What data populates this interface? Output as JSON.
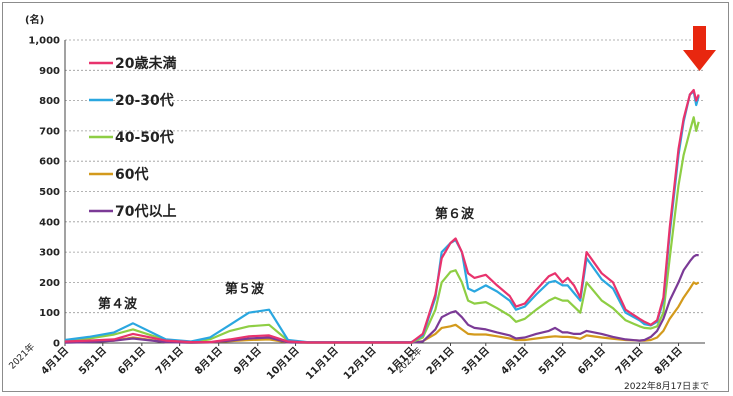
{
  "chart_data": {
    "type": "line",
    "unit_label": "(名)",
    "ylim": [
      0,
      1000
    ],
    "y_ticks": [
      "0",
      "100",
      "200",
      "300",
      "400",
      "500",
      "600",
      "700",
      "800",
      "900",
      "1,000"
    ],
    "x_ticks": [
      "4月1日",
      "5月1日",
      "6月1日",
      "7月1日",
      "8月1日",
      "9月1日",
      "10月1日",
      "11月1日",
      "12月1日",
      "1月1日",
      "2月1日",
      "3月1日",
      "4月1日",
      "5月1日",
      "6月1日",
      "7月1日",
      "8月1日"
    ],
    "x_year_labels": [
      "2021年",
      "2022年"
    ],
    "footnote": "2022年8月17日まで",
    "annotations": [
      "第４波",
      "第５波",
      "第６波"
    ],
    "grid": "horizontal dotted",
    "legend_position": "top-left",
    "x_dates": [
      "2021-04-01",
      "2021-04-20",
      "2021-05-10",
      "2021-05-25",
      "2021-06-20",
      "2021-07-10",
      "2021-07-25",
      "2021-08-10",
      "2021-08-25",
      "2021-09-10",
      "2021-09-25",
      "2021-10-10",
      "2021-11-01",
      "2021-12-01",
      "2022-01-01",
      "2022-01-10",
      "2022-01-20",
      "2022-01-25",
      "2022-02-01",
      "2022-02-05",
      "2022-02-10",
      "2022-02-15",
      "2022-02-20",
      "2022-03-01",
      "2022-03-10",
      "2022-03-20",
      "2022-03-25",
      "2022-04-01",
      "2022-04-10",
      "2022-04-20",
      "2022-04-25",
      "2022-05-01",
      "2022-05-05",
      "2022-05-10",
      "2022-05-15",
      "2022-05-20",
      "2022-06-01",
      "2022-06-10",
      "2022-06-20",
      "2022-07-01",
      "2022-07-05",
      "2022-07-10",
      "2022-07-15",
      "2022-07-20",
      "2022-07-25",
      "2022-08-01",
      "2022-08-05",
      "2022-08-10",
      "2022-08-13",
      "2022-08-15",
      "2022-08-17"
    ],
    "series": [
      {
        "name": "20歳未満",
        "color": "#e8336d",
        "values": [
          5,
          8,
          12,
          30,
          8,
          3,
          3,
          12,
          22,
          25,
          5,
          2,
          2,
          2,
          2,
          30,
          160,
          280,
          330,
          345,
          300,
          230,
          215,
          225,
          190,
          155,
          120,
          130,
          175,
          220,
          230,
          200,
          215,
          190,
          150,
          300,
          230,
          200,
          110,
          80,
          70,
          60,
          75,
          150,
          380,
          640,
          740,
          820,
          835,
          800,
          820
        ]
      },
      {
        "name": "20-30代",
        "color": "#2aa7e0",
        "values": [
          10,
          20,
          35,
          65,
          12,
          5,
          18,
          60,
          100,
          110,
          10,
          3,
          3,
          3,
          3,
          25,
          150,
          300,
          330,
          340,
          300,
          180,
          170,
          190,
          170,
          140,
          110,
          120,
          160,
          200,
          205,
          190,
          190,
          165,
          140,
          280,
          210,
          180,
          100,
          75,
          62,
          58,
          70,
          140,
          360,
          620,
          730,
          820,
          830,
          785,
          815
        ]
      },
      {
        "name": "40-50代",
        "color": "#8ece44",
        "values": [
          8,
          15,
          28,
          45,
          10,
          4,
          12,
          40,
          55,
          60,
          8,
          2,
          2,
          2,
          2,
          18,
          110,
          200,
          235,
          240,
          200,
          140,
          130,
          135,
          115,
          90,
          70,
          80,
          110,
          140,
          150,
          140,
          140,
          120,
          100,
          200,
          140,
          115,
          75,
          55,
          50,
          48,
          55,
          100,
          280,
          520,
          620,
          700,
          745,
          700,
          730
        ]
      },
      {
        "name": "60代",
        "color": "#d39a1c",
        "values": [
          2,
          4,
          8,
          18,
          3,
          1,
          2,
          6,
          10,
          12,
          2,
          1,
          1,
          1,
          1,
          6,
          30,
          50,
          55,
          60,
          45,
          30,
          28,
          28,
          22,
          15,
          10,
          10,
          15,
          20,
          22,
          20,
          20,
          18,
          14,
          25,
          18,
          14,
          10,
          8,
          8,
          10,
          18,
          40,
          80,
          120,
          150,
          180,
          200,
          195,
          200
        ]
      },
      {
        "name": "70代以上",
        "color": "#7b3a96",
        "values": [
          1,
          3,
          8,
          15,
          3,
          1,
          2,
          8,
          15,
          18,
          2,
          1,
          1,
          1,
          1,
          5,
          45,
          85,
          100,
          105,
          85,
          60,
          50,
          45,
          35,
          25,
          15,
          18,
          30,
          40,
          50,
          35,
          35,
          30,
          30,
          40,
          30,
          20,
          12,
          8,
          10,
          20,
          40,
          80,
          140,
          200,
          240,
          270,
          285,
          290,
          290
        ]
      }
    ]
  }
}
